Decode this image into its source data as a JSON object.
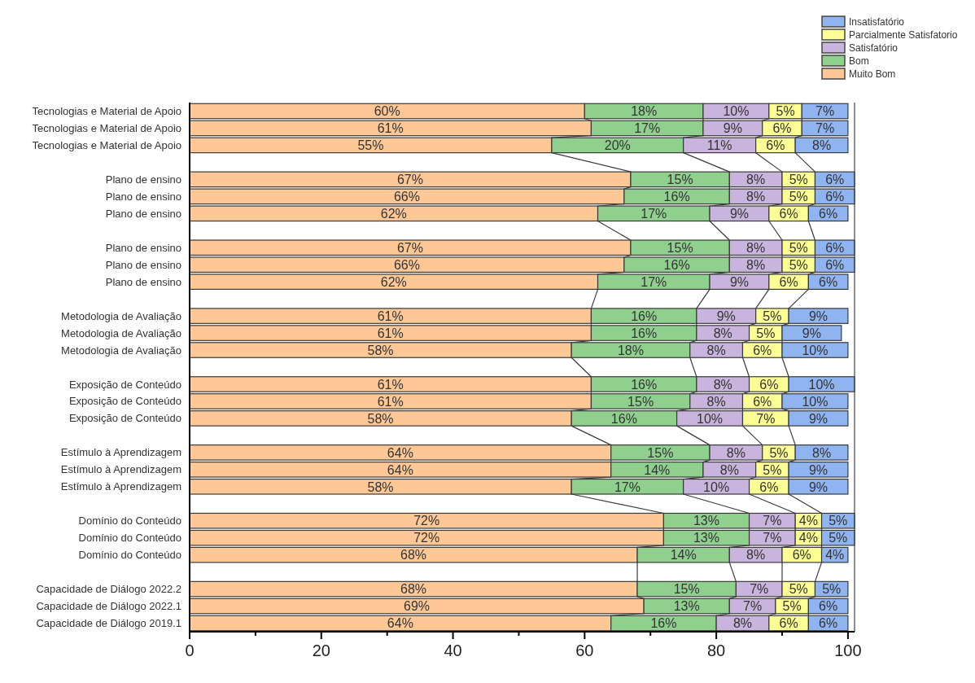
{
  "chart_data": {
    "type": "bar",
    "orientation": "horizontal",
    "stacked": true,
    "legend": "top right",
    "xlim": [
      0,
      101
    ],
    "xticks": [
      0,
      {
        "value": 10,
        "label": null
      },
      20,
      {
        "value": 30,
        "label": null
      },
      40,
      {
        "value": 50,
        "label": null
      },
      60,
      {
        "value": 70,
        "label": null
      },
      80,
      {
        "value": 90,
        "label": null
      },
      100
    ],
    "categories": [
      "Tecnologias e Material de Apoio",
      "Tecnologias e Material de Apoio",
      "Tecnologias e Material de Apoio",
      null,
      "Plano de ensino",
      "Plano de ensino",
      "Plano de ensino",
      null,
      "Plano de ensino",
      "Plano de ensino",
      "Plano de ensino",
      null,
      "Metodologia de Avaliação",
      "Metodologia de Avaliação",
      "Metodologia de Avaliação",
      null,
      "Exposição de Conteúdo",
      "Exposição de Conteúdo",
      "Exposição de Conteúdo",
      null,
      "Estímulo à Aprendizagem",
      "Estímulo à Aprendizagem",
      "Estímulo à Aprendizagem",
      null,
      "Domínio do Conteúdo",
      "Domínio do Conteúdo",
      "Domínio do Conteúdo",
      null,
      "Capacidade de Diálogo 2022.2",
      "Capacidade de Diálogo 2022.1",
      "Capacidade de Diálogo 2019.1"
    ],
    "series": [
      {
        "name": "Muito Bom",
        "color": "#fdc896",
        "values": [
          60,
          61,
          55,
          null,
          67,
          66,
          62,
          null,
          67,
          66,
          62,
          null,
          61,
          61,
          58,
          null,
          61,
          61,
          58,
          null,
          64,
          64,
          58,
          null,
          72,
          72,
          68,
          null,
          68,
          69,
          64
        ],
        "value_labels": [
          "60%",
          "61%",
          "55%",
          null,
          "67%",
          "66%",
          "62%",
          null,
          "67%",
          "66%",
          "62%",
          null,
          "61%",
          "61%",
          "58%",
          null,
          "61%",
          "61%",
          "58%",
          null,
          "64%",
          "64%",
          "58%",
          null,
          "72%",
          "72%",
          "68%",
          null,
          "68%",
          "69%",
          "64%"
        ]
      },
      {
        "name": "Bom",
        "color": "#90d08f",
        "values": [
          18,
          17,
          20,
          null,
          15,
          16,
          17,
          null,
          15,
          16,
          17,
          null,
          16,
          16,
          18,
          null,
          16,
          15,
          16,
          null,
          15,
          14,
          17,
          null,
          13,
          13,
          14,
          null,
          15,
          13,
          16
        ],
        "value_labels": [
          "18%",
          "17%",
          "20%",
          null,
          "15%",
          "16%",
          "17%",
          null,
          "15%",
          "16%",
          "17%",
          null,
          "16%",
          "16%",
          "18%",
          null,
          "16%",
          "15%",
          "16%",
          null,
          "15%",
          "14%",
          "17%",
          null,
          "13%",
          "13%",
          "14%",
          null,
          "15%",
          "13%",
          "16%"
        ]
      },
      {
        "name": "Satisfatório",
        "color": "#c8b4dc",
        "values": [
          10,
          9,
          11,
          null,
          8,
          8,
          9,
          null,
          8,
          8,
          9,
          null,
          9,
          8,
          8,
          null,
          8,
          8,
          10,
          null,
          8,
          8,
          10,
          null,
          7,
          7,
          8,
          null,
          7,
          7,
          8
        ],
        "value_labels": [
          "10%",
          "9%",
          "11%",
          null,
          "8%",
          "8%",
          "9%",
          null,
          "8%",
          "8%",
          "9%",
          null,
          "9%",
          "8%",
          "8%",
          null,
          "8%",
          "8%",
          "10%",
          null,
          "8%",
          "8%",
          "10%",
          null,
          "7%",
          "7%",
          "8%",
          null,
          "7%",
          "7%",
          "8%"
        ]
      },
      {
        "name": "Parcialmente Satisfatorio",
        "color": "#fdfd96",
        "values": [
          5,
          6,
          6,
          null,
          5,
          5,
          6,
          null,
          5,
          5,
          6,
          null,
          5,
          5,
          6,
          null,
          6,
          6,
          7,
          null,
          5,
          5,
          6,
          null,
          4,
          4,
          6,
          null,
          5,
          5,
          6
        ],
        "value_labels": [
          "5%",
          "6%",
          "6%",
          null,
          "5%",
          "5%",
          "6%",
          null,
          "5%",
          "5%",
          "6%",
          null,
          "5%",
          "5%",
          "6%",
          null,
          "6%",
          "6%",
          "7%",
          null,
          "5%",
          "5%",
          "6%",
          null,
          "4%",
          "4%",
          "6%",
          null,
          "5%",
          "5%",
          "6%"
        ]
      },
      {
        "name": "Insatisfatório",
        "color": "#90b4f0",
        "values": [
          7,
          7,
          8,
          null,
          6,
          6,
          6,
          null,
          6,
          6,
          6,
          null,
          9,
          9,
          10,
          null,
          10,
          10,
          9,
          null,
          8,
          9,
          9,
          null,
          5,
          5,
          4,
          null,
          5,
          6,
          6
        ],
        "value_labels": [
          "7%",
          "7%",
          "8%",
          null,
          "6%",
          "6%",
          "6%",
          null,
          "6%",
          "6%",
          "6%",
          null,
          "9%",
          "9%",
          "10%",
          null,
          "10%",
          "10%",
          "9%",
          null,
          "8%",
          "9%",
          "9%",
          null,
          "5%",
          "5%",
          "4%",
          null,
          "5%",
          "6%",
          "6%"
        ]
      }
    ]
  }
}
